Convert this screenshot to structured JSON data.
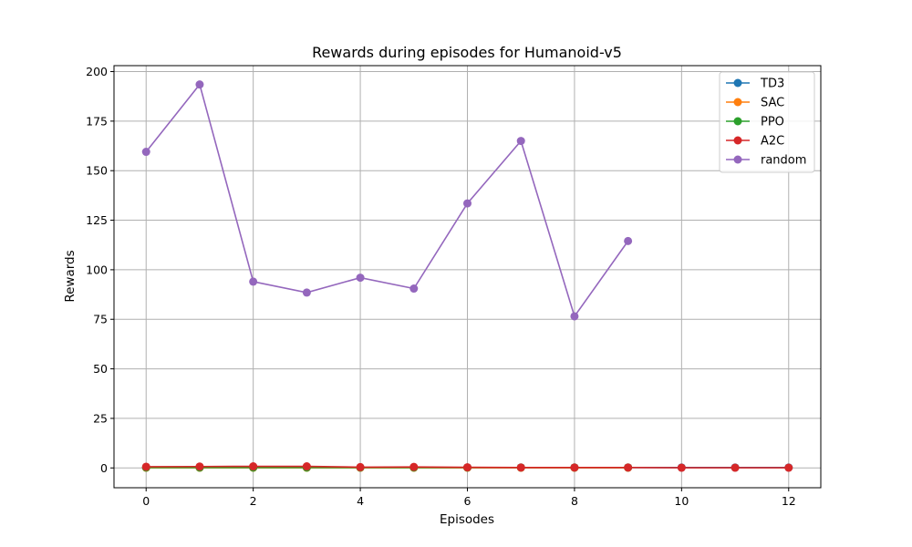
{
  "chart_data": {
    "type": "line",
    "title": "Rewards during episodes for Humanoid-v5",
    "xlabel": "Episodes",
    "ylabel": "Rewards",
    "xlim": [
      -0.6,
      12.6
    ],
    "ylim": [
      -10,
      203
    ],
    "xticks": [
      0,
      2,
      4,
      6,
      8,
      10,
      12
    ],
    "yticks": [
      0,
      25,
      50,
      75,
      100,
      125,
      150,
      175,
      200
    ],
    "grid": true,
    "legend_position": "top-right",
    "series": [
      {
        "name": "TD3",
        "color": "#1f77b4",
        "x": [
          0,
          1,
          2,
          3,
          4,
          5,
          6,
          7,
          8,
          9,
          10,
          11,
          12
        ],
        "y": [
          0.2,
          0.2,
          0.2,
          0.2,
          0.2,
          0.2,
          0.2,
          0.2,
          0.2,
          0.2,
          0.2,
          0.2,
          0.2
        ]
      },
      {
        "name": "SAC",
        "color": "#ff7f0e",
        "x": [
          0,
          1,
          2,
          3,
          4,
          5,
          6,
          7,
          8,
          9
        ],
        "y": [
          0.1,
          0.1,
          0.1,
          0.1,
          0.1,
          0.1,
          0.1,
          0.1,
          0.1,
          0.1
        ]
      },
      {
        "name": "PPO",
        "color": "#2ca02c",
        "x": [
          0,
          1,
          2,
          3,
          4,
          5,
          6,
          7,
          8,
          9
        ],
        "y": [
          0.2,
          0.2,
          0.2,
          0.2,
          0.2,
          0.2,
          0.2,
          0.2,
          0.2,
          0.2
        ]
      },
      {
        "name": "A2C",
        "color": "#d62728",
        "x": [
          0,
          1,
          2,
          3,
          4,
          5,
          6,
          7,
          8,
          9,
          10,
          11,
          12
        ],
        "y": [
          0.6,
          0.7,
          0.8,
          0.8,
          0.4,
          0.5,
          0.3,
          0.2,
          0.2,
          0.2,
          0.1,
          0.1,
          0.1
        ]
      },
      {
        "name": "random",
        "color": "#9467bd",
        "x": [
          0,
          1,
          2,
          3,
          4,
          5,
          6,
          7,
          8,
          9
        ],
        "y": [
          159.5,
          193.5,
          94,
          88.5,
          96,
          90.5,
          133.5,
          165,
          76.5,
          114.5
        ]
      }
    ]
  }
}
